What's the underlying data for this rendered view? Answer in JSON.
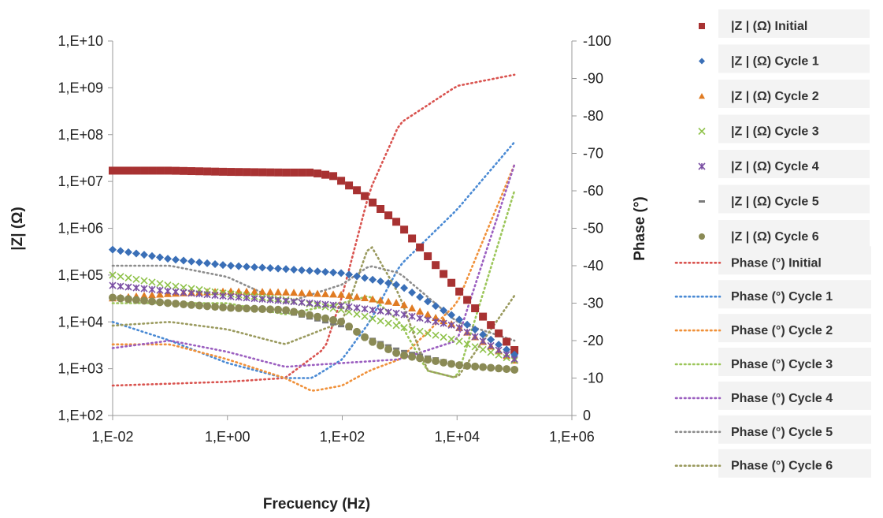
{
  "chart_data": {
    "type": "scatter",
    "xlabel": "Frecuency (Hz)",
    "ylabel": "|Z| (Ω)",
    "y2label": "Phase (°)",
    "x_scale": "log",
    "y_scale": "log",
    "xlim": [
      0.01,
      1000000
    ],
    "ylim": [
      100,
      10000000000
    ],
    "y2lim": [
      0,
      -100
    ],
    "x_ticks": [
      "1,E-02",
      "1,E+00",
      "1,E+02",
      "1,E+04",
      "1,E+06"
    ],
    "y_ticks": [
      "1,E+02",
      "1,E+03",
      "1,E+04",
      "1,E+05",
      "1,E+06",
      "1,E+07",
      "1,E+08",
      "1,E+09",
      "1,E+10"
    ],
    "y2_ticks": [
      "0",
      "-10",
      "-20",
      "-30",
      "-40",
      "-50",
      "-60",
      "-70",
      "-80",
      "-90",
      "-100"
    ],
    "grid": false,
    "legend_position": "right",
    "impedance_series": [
      {
        "name": "|Z | (Ω) Initial",
        "color": "#a83232",
        "marker": "square",
        "points": [
          [
            0.01,
            17000000.0
          ],
          [
            0.1,
            17000000.0
          ],
          [
            1,
            16000000.0
          ],
          [
            10,
            15500000.0
          ],
          [
            30,
            15500000.0
          ],
          [
            70,
            13000000.0
          ],
          [
            200,
            6000000.0
          ],
          [
            1000,
            1200000.0
          ],
          [
            10000,
            50000.0
          ],
          [
            100000,
            2500.0
          ]
        ]
      },
      {
        "name": "|Z | (Ω) Cycle 1",
        "color": "#3a6fb7",
        "marker": "diamond",
        "points": [
          [
            0.01,
            350000.0
          ],
          [
            0.1,
            220000.0
          ],
          [
            1,
            160000.0
          ],
          [
            10,
            135000.0
          ],
          [
            100,
            110000.0
          ],
          [
            1000,
            60000.0
          ],
          [
            10000,
            12000.0
          ],
          [
            100000,
            2000.0
          ]
        ]
      },
      {
        "name": "|Z | (Ω) Cycle 2",
        "color": "#e07b22",
        "marker": "triangle",
        "points": [
          [
            0.01,
            32000.0
          ],
          [
            0.1,
            40000.0
          ],
          [
            1,
            45000.0
          ],
          [
            10,
            43000.0
          ],
          [
            100,
            38000.0
          ],
          [
            1000,
            25000.0
          ],
          [
            10000,
            8000.0
          ],
          [
            100000,
            1500.0
          ]
        ]
      },
      {
        "name": "|Z | (Ω) Cycle 3",
        "color": "#8fc24a",
        "marker": "x",
        "points": [
          [
            0.01,
            100000.0
          ],
          [
            0.1,
            60000.0
          ],
          [
            1,
            40000.0
          ],
          [
            10,
            30000.0
          ],
          [
            100,
            18000.0
          ],
          [
            1000,
            8000.0
          ],
          [
            10000,
            4000.0
          ],
          [
            100000,
            1500.0
          ]
        ]
      },
      {
        "name": "|Z | (Ω) Cycle 4",
        "color": "#7a4fa3",
        "marker": "star",
        "points": [
          [
            0.01,
            60000.0
          ],
          [
            0.1,
            45000.0
          ],
          [
            1,
            35000.0
          ],
          [
            10,
            28000.0
          ],
          [
            100,
            22000.0
          ],
          [
            1000,
            15000.0
          ],
          [
            10000,
            8000.0
          ],
          [
            100000,
            1600.0
          ]
        ]
      },
      {
        "name": "|Z | (Ω) Cycle 5",
        "color": "#7a7a7a",
        "marker": "dash",
        "points": [
          [
            0.01,
            35000.0
          ],
          [
            0.1,
            25000.0
          ],
          [
            1,
            20000.0
          ],
          [
            10,
            16000.0
          ],
          [
            100,
            8000.0
          ],
          [
            1000,
            2500.0
          ],
          [
            10000,
            1300.0
          ],
          [
            100000,
            900
          ]
        ]
      },
      {
        "name": "|Z | (Ω) Cycle 6",
        "color": "#8a8a55",
        "marker": "circle",
        "points": [
          [
            0.01,
            33000.0
          ],
          [
            0.1,
            25000.0
          ],
          [
            1,
            20000.0
          ],
          [
            10,
            18000.0
          ],
          [
            100,
            10000.0
          ],
          [
            300,
            4000.0
          ],
          [
            1000,
            2000.0
          ],
          [
            10000,
            1200.0
          ],
          [
            100000,
            950
          ]
        ]
      }
    ],
    "phase_series": [
      {
        "name": "Phase (°) Initial",
        "color": "#d9534f",
        "points": [
          [
            0.01,
            -8
          ],
          [
            0.1,
            -8.5
          ],
          [
            1,
            -9
          ],
          [
            10,
            -10
          ],
          [
            50,
            -18
          ],
          [
            100,
            -32
          ],
          [
            300,
            -60
          ],
          [
            1000,
            -78
          ],
          [
            10000,
            -88
          ],
          [
            100000,
            -91
          ]
        ]
      },
      {
        "name": "Phase (°) Cycle 1",
        "color": "#4a8ad4",
        "points": [
          [
            0.01,
            -25
          ],
          [
            0.1,
            -20
          ],
          [
            1,
            -14
          ],
          [
            10,
            -10
          ],
          [
            30,
            -10
          ],
          [
            100,
            -15
          ],
          [
            300,
            -25
          ],
          [
            1000,
            -40
          ],
          [
            10000,
            -55
          ],
          [
            100000,
            -73
          ]
        ]
      },
      {
        "name": "Phase (°) Cycle 2",
        "color": "#f0913a",
        "points": [
          [
            0.01,
            -19
          ],
          [
            0.1,
            -19
          ],
          [
            1,
            -15
          ],
          [
            10,
            -10
          ],
          [
            30,
            -6.5
          ],
          [
            100,
            -8
          ],
          [
            300,
            -12
          ],
          [
            1000,
            -15
          ],
          [
            10000,
            -30
          ],
          [
            100000,
            -67
          ]
        ]
      },
      {
        "name": "Phase (°) Cycle 3",
        "color": "#9cc65a",
        "points": [
          [
            0.01,
            -30
          ],
          [
            0.1,
            -30
          ],
          [
            1,
            -30
          ],
          [
            10,
            -27
          ],
          [
            100,
            -30
          ],
          [
            300,
            -32
          ],
          [
            1000,
            -25
          ],
          [
            3000,
            -12
          ],
          [
            10000,
            -10
          ],
          [
            100000,
            -60
          ]
        ]
      },
      {
        "name": "Phase (°) Cycle 4",
        "color": "#9b5fc0",
        "points": [
          [
            0.01,
            -18
          ],
          [
            0.1,
            -20
          ],
          [
            1,
            -17
          ],
          [
            10,
            -13
          ],
          [
            100,
            -14
          ],
          [
            1000,
            -15
          ],
          [
            10000,
            -20
          ],
          [
            100000,
            -67
          ]
        ]
      },
      {
        "name": "Phase (°) Cycle 5",
        "color": "#8c8c8c",
        "points": [
          [
            0.01,
            -40
          ],
          [
            0.1,
            -40
          ],
          [
            1,
            -37
          ],
          [
            10,
            -30
          ],
          [
            100,
            -35
          ],
          [
            300,
            -40
          ],
          [
            1000,
            -38
          ],
          [
            10000,
            -25
          ],
          [
            100000,
            -20
          ]
        ]
      },
      {
        "name": "Phase (°) Cycle 6",
        "color": "#9a9a5e",
        "points": [
          [
            0.01,
            -24
          ],
          [
            0.1,
            -25
          ],
          [
            1,
            -23
          ],
          [
            10,
            -19
          ],
          [
            100,
            -25
          ],
          [
            300,
            -46
          ],
          [
            1000,
            -32
          ],
          [
            3000,
            -12
          ],
          [
            10000,
            -10
          ],
          [
            100000,
            -32
          ]
        ]
      }
    ]
  }
}
